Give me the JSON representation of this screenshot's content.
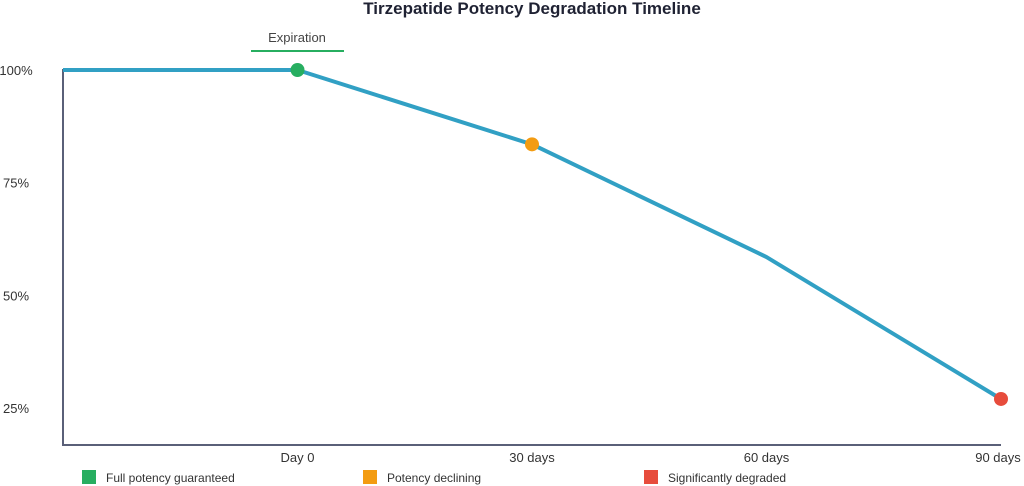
{
  "chart_data": {
    "type": "line",
    "title": "Tirzepatide Potency Degradation Timeline",
    "x_tick_labels": [
      "Day 0",
      "30 days",
      "60 days",
      "90 days"
    ],
    "x_tick_values": [
      0,
      30,
      60,
      90
    ],
    "y_tick_labels": [
      "100%",
      "75%",
      "50%",
      "25%"
    ],
    "y_tick_values": [
      100,
      75,
      50,
      25
    ],
    "xlim": [
      -30,
      90
    ],
    "ylim": [
      17,
      100
    ],
    "grid": false,
    "series": [
      {
        "x": [
          -30,
          0,
          30,
          60,
          90
        ],
        "y": [
          100,
          100,
          83.5,
          58.5,
          27
        ],
        "color": "#31a0c4"
      }
    ],
    "markers": [
      {
        "x": 0,
        "y": 100,
        "color": "#27ae60"
      },
      {
        "x": 30,
        "y": 83.5,
        "color": "#f39c12"
      },
      {
        "x": 90,
        "y": 27,
        "color": "#e74c3c"
      }
    ],
    "annotation": {
      "text": "Expiration",
      "x": 0,
      "color": "#27ae60"
    },
    "legend": {
      "placement": "bottom",
      "items": [
        {
          "label": "Full potency guaranteed",
          "color": "#27ae60"
        },
        {
          "label": "Potency declining",
          "color": "#f39c12"
        },
        {
          "label": "Significantly degraded",
          "color": "#e74c3c"
        }
      ]
    }
  }
}
